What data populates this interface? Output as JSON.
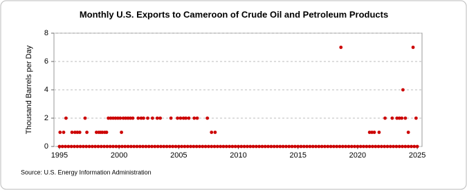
{
  "chart_data": {
    "type": "scatter",
    "title": "Monthly U.S. Exports to Cameroon of Crude Oil and Petroleum Products",
    "y_label": "Thousand Barrels per Day",
    "source": "Source: U.S. Energy Information Administration",
    "color": "#cc0000",
    "grid": true,
    "xlim": [
      1994.54,
      2025.4
    ],
    "ylim": [
      0,
      8
    ],
    "xticks": [
      1995,
      2000,
      2005,
      2010,
      2015,
      2020,
      2025
    ],
    "yticks": [
      0,
      2,
      4,
      6,
      8
    ],
    "x": [
      1995.05,
      1995.35,
      1995.55,
      1996.05,
      1996.3,
      1996.5,
      1996.7,
      1997.15,
      1997.3,
      1998.1,
      1998.3,
      1998.45,
      1998.6,
      1998.8,
      1998.95,
      1999.1,
      1999.3,
      1999.5,
      1999.7,
      1999.9,
      2000.1,
      2000.2,
      2000.35,
      2000.55,
      2000.75,
      2000.95,
      2001.15,
      2001.6,
      2001.85,
      2002.05,
      2002.4,
      2002.8,
      2003.2,
      2003.45,
      2004.35,
      2004.9,
      2005.15,
      2005.4,
      2005.6,
      2005.85,
      2006.3,
      2006.55,
      2007.4,
      2007.75,
      2008.05,
      2018.6,
      2021.0,
      2021.2,
      2021.4,
      2021.8,
      2022.3,
      2022.9,
      2023.3,
      2023.5,
      2023.7,
      2023.8,
      2024.0,
      2024.25,
      2024.65,
      2024.9,
      1995,
      1995.25,
      1995.5,
      1995.75,
      1996,
      1996.25,
      1996.5,
      1996.75,
      1997,
      1997.25,
      1997.5,
      1997.75,
      1998,
      1998.25,
      1998.5,
      1998.75,
      1999,
      1999.25,
      1999.5,
      1999.75,
      2000,
      2000.25,
      2000.5,
      2000.75,
      2001,
      2001.25,
      2001.5,
      2001.75,
      2002,
      2002.25,
      2002.5,
      2002.75,
      2003,
      2003.25,
      2003.5,
      2003.75,
      2004,
      2004.25,
      2004.5,
      2004.75,
      2005,
      2005.25,
      2005.5,
      2005.75,
      2006,
      2006.25,
      2006.5,
      2006.75,
      2007,
      2007.25,
      2007.5,
      2007.75,
      2008,
      2008.25,
      2008.5,
      2008.75,
      2009,
      2009.25,
      2009.5,
      2009.75,
      2010,
      2010.25,
      2010.5,
      2010.75,
      2011,
      2011.25,
      2011.5,
      2011.75,
      2012,
      2012.25,
      2012.5,
      2012.75,
      2013,
      2013.25,
      2013.5,
      2013.75,
      2014,
      2014.25,
      2014.5,
      2014.75,
      2015,
      2015.25,
      2015.5,
      2015.75,
      2016,
      2016.25,
      2016.5,
      2016.75,
      2017,
      2017.25,
      2017.5,
      2017.75,
      2018,
      2018.25,
      2018.5,
      2018.75,
      2019,
      2019.25,
      2019.5,
      2019.75,
      2020,
      2020.25,
      2020.5,
      2020.75,
      2021,
      2021.25,
      2021.5,
      2021.75,
      2022,
      2022.25,
      2022.5,
      2022.75,
      2023,
      2023.25,
      2023.5,
      2023.75,
      2024,
      2024.25,
      2024.5,
      2024.75,
      2025
    ],
    "values": [
      1,
      1,
      2,
      1,
      1,
      1,
      1,
      2,
      1,
      1,
      1,
      1,
      1,
      1,
      1,
      2,
      2,
      2,
      2,
      2,
      2,
      1,
      2,
      2,
      2,
      2,
      2,
      2,
      2,
      2,
      2,
      2,
      2,
      2,
      2,
      2,
      2,
      2,
      2,
      2,
      2,
      2,
      2,
      1,
      1,
      7,
      1,
      1,
      1,
      1,
      2,
      2,
      2,
      2,
      2,
      4,
      2,
      1,
      7,
      2,
      0,
      0,
      0,
      0,
      0,
      0,
      0,
      0,
      0,
      0,
      0,
      0,
      0,
      0,
      0,
      0,
      0,
      0,
      0,
      0,
      0,
      0,
      0,
      0,
      0,
      0,
      0,
      0,
      0,
      0,
      0,
      0,
      0,
      0,
      0,
      0,
      0,
      0,
      0,
      0,
      0,
      0,
      0,
      0,
      0,
      0,
      0,
      0,
      0,
      0,
      0,
      0,
      0,
      0,
      0,
      0,
      0,
      0,
      0,
      0,
      0,
      0,
      0,
      0,
      0,
      0,
      0,
      0,
      0,
      0,
      0,
      0,
      0,
      0,
      0,
      0,
      0,
      0,
      0,
      0,
      0,
      0,
      0,
      0,
      0,
      0,
      0,
      0,
      0,
      0,
      0,
      0,
      0,
      0,
      0,
      0,
      0,
      0,
      0,
      0,
      0,
      0,
      0,
      0,
      0,
      0,
      0,
      0,
      0,
      0,
      0,
      0,
      0,
      0,
      0,
      0,
      0,
      0,
      0,
      0,
      0
    ]
  }
}
